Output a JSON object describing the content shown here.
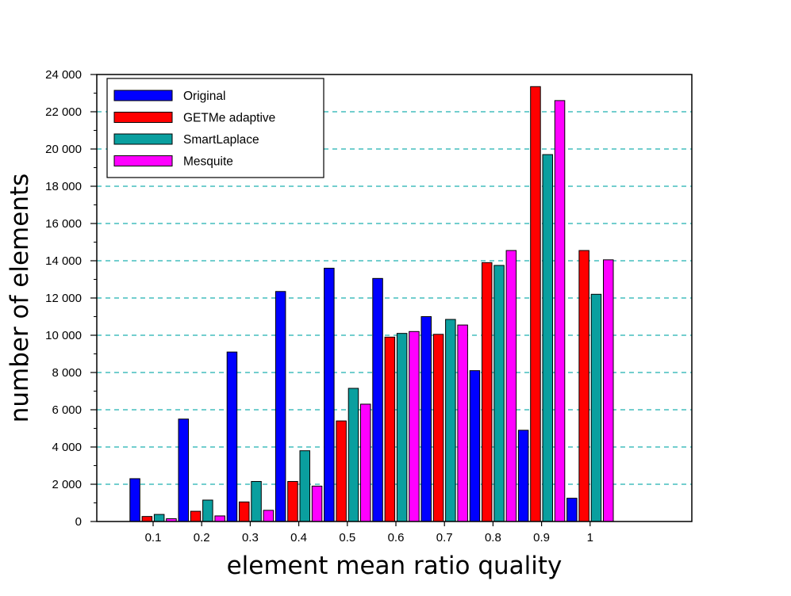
{
  "chart_data": {
    "type": "bar",
    "title": "",
    "xlabel": "element mean ratio quality",
    "ylabel": "number of elements",
    "categories": [
      "0.1",
      "0.2",
      "0.3",
      "0.4",
      "0.5",
      "0.6",
      "0.7",
      "0.8",
      "0.9",
      "1"
    ],
    "ylim": [
      0,
      24000
    ],
    "yticks": [
      0,
      2000,
      4000,
      6000,
      8000,
      10000,
      12000,
      14000,
      16000,
      18000,
      20000,
      22000,
      24000
    ],
    "ytick_labels": [
      "0",
      "2 000",
      "4 000",
      "6 000",
      "8 000",
      "10 000",
      "12 000",
      "14 000",
      "16 000",
      "18 000",
      "20 000",
      "22 000",
      "24 000"
    ],
    "grid": "horizontal dashed",
    "legend_position": "top-left",
    "series": [
      {
        "name": "Original",
        "color": "#0000ff",
        "values": [
          2300,
          5500,
          9100,
          12350,
          13600,
          13050,
          11000,
          8100,
          4900,
          1250
        ]
      },
      {
        "name": "GETMe adaptive",
        "color": "#ff0000",
        "values": [
          270,
          550,
          1050,
          2150,
          5400,
          9900,
          10050,
          13900,
          23350,
          14550
        ]
      },
      {
        "name": "SmartLaplace",
        "color": "#0a9f9f",
        "values": [
          380,
          1150,
          2150,
          3800,
          7150,
          10100,
          10850,
          13750,
          19700,
          12200
        ]
      },
      {
        "name": "Mesquite",
        "color": "#ff00ff",
        "values": [
          150,
          300,
          600,
          1900,
          6300,
          10200,
          10550,
          14550,
          22600,
          14050
        ]
      }
    ],
    "grid_color": "#1fb0b0"
  }
}
